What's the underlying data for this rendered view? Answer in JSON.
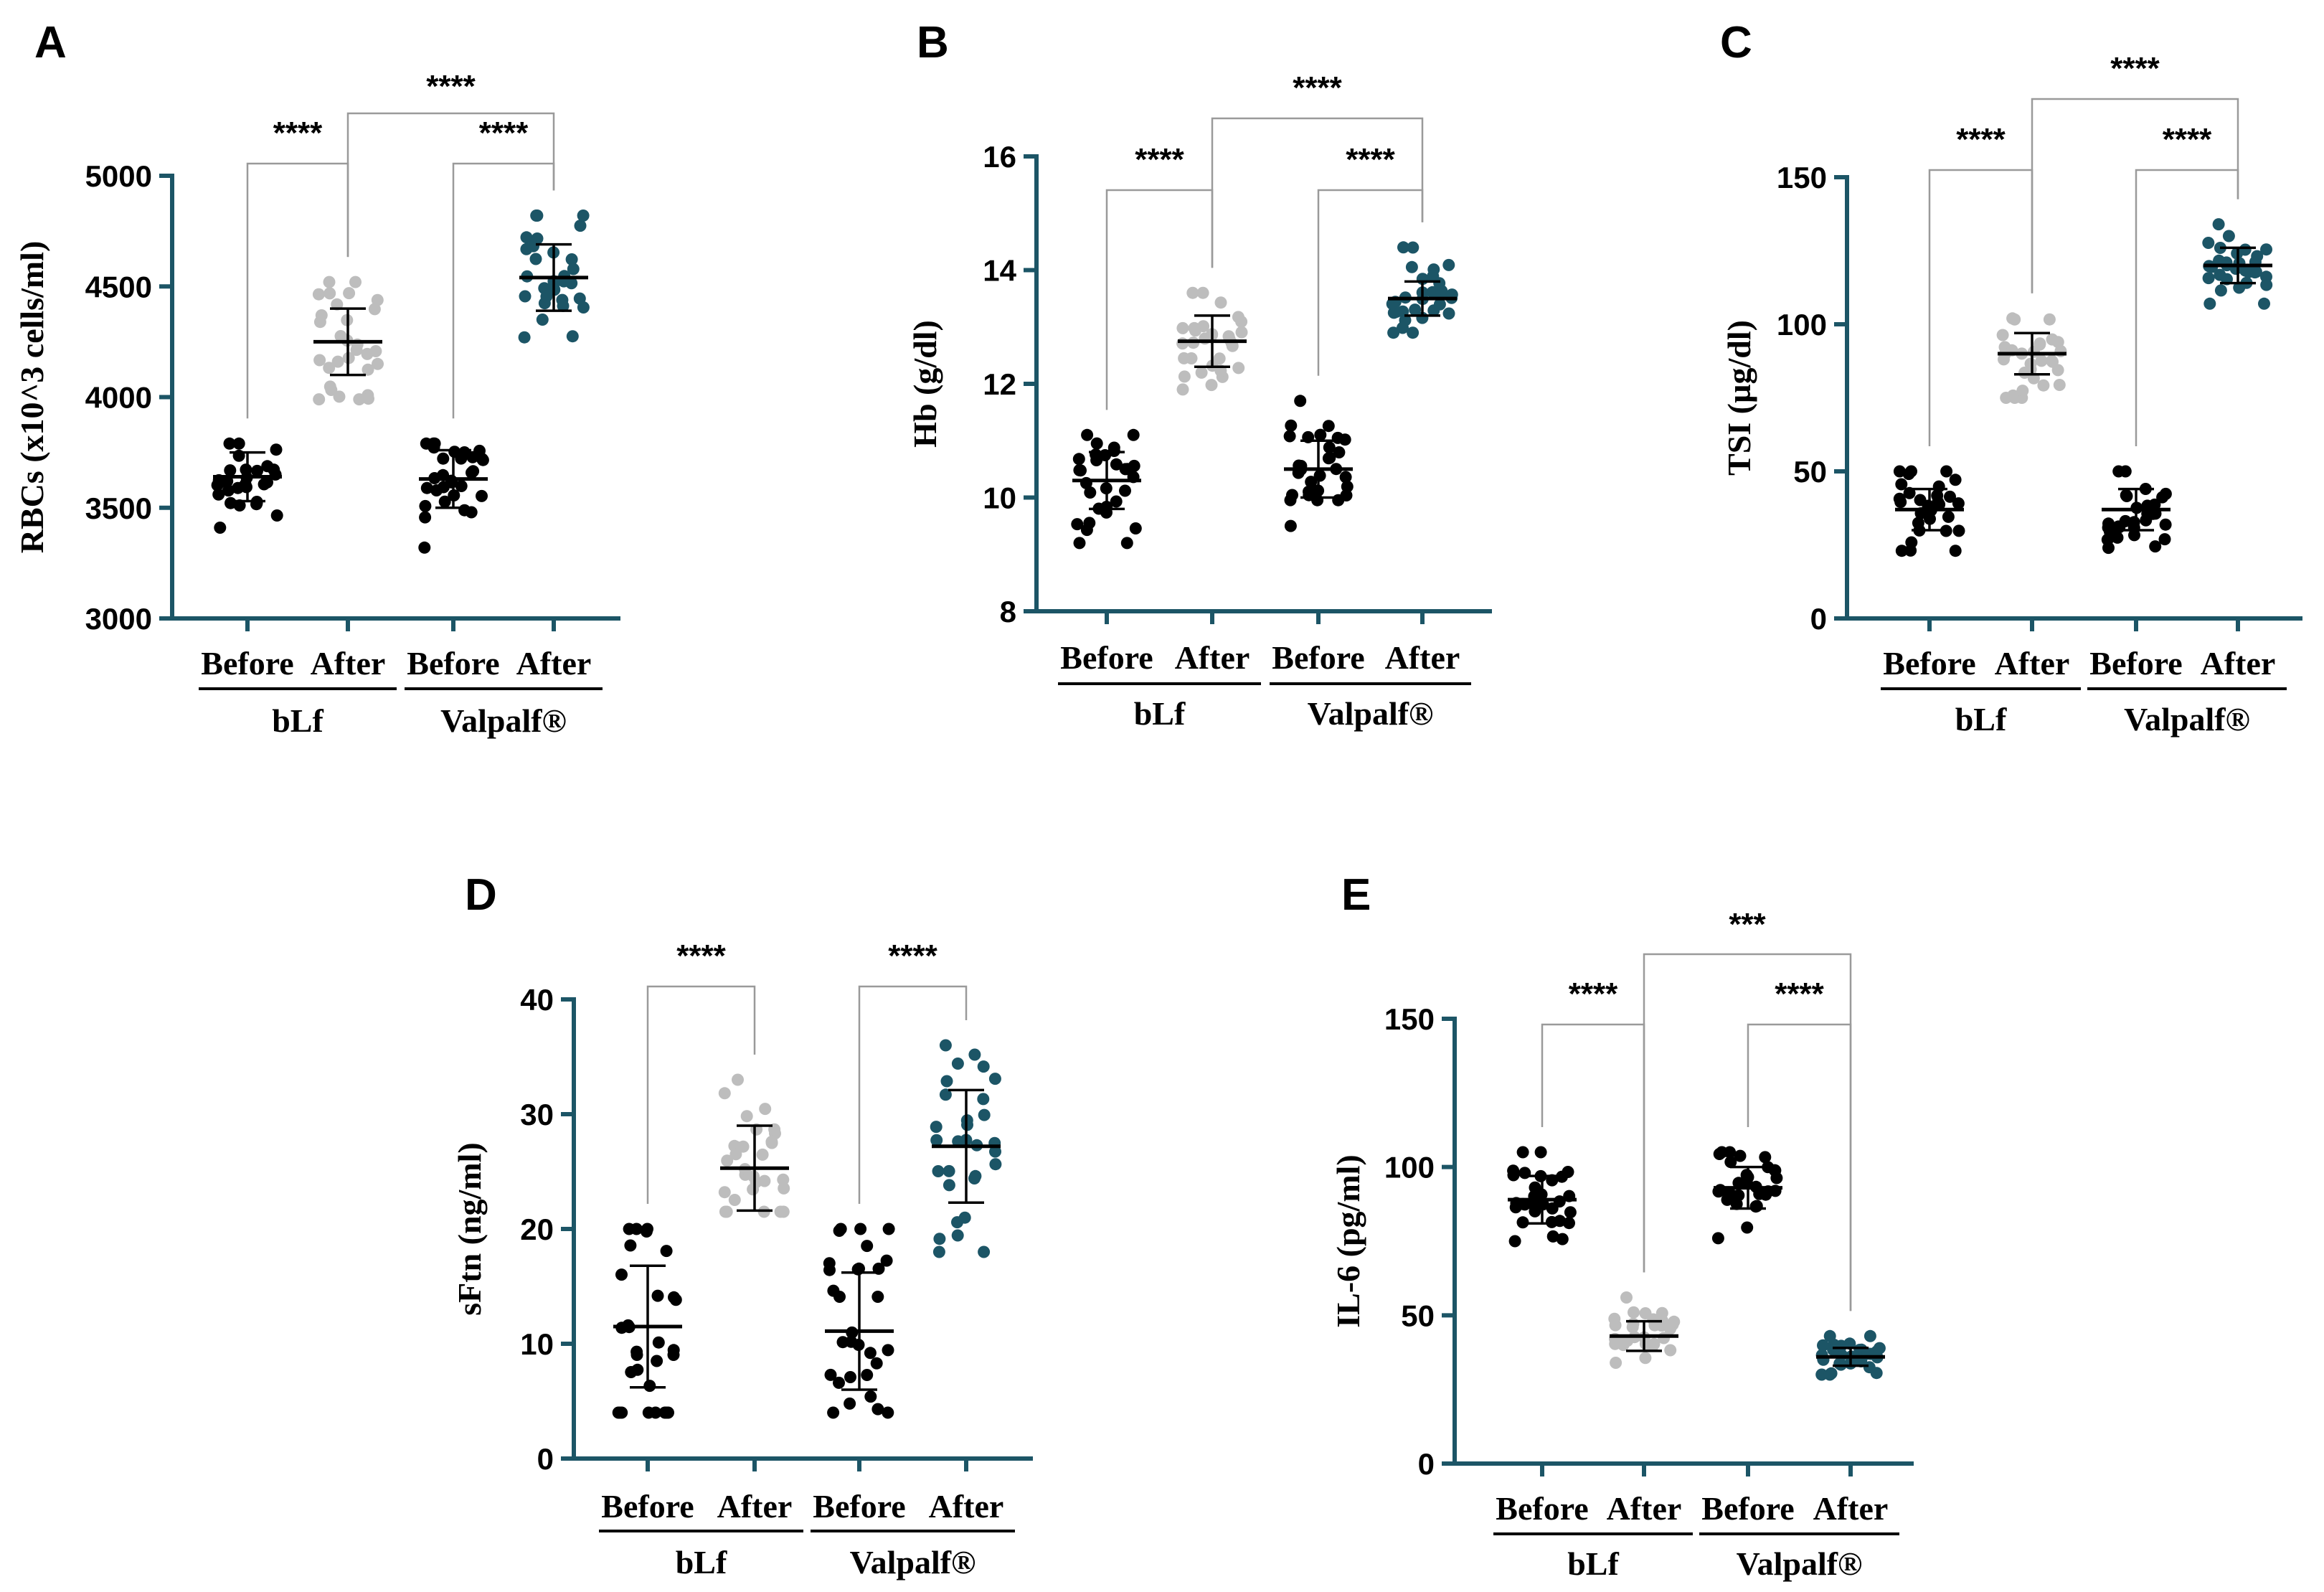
{
  "figure": {
    "categories": [
      "Before",
      "After",
      "Before",
      "After"
    ],
    "groups": [
      "bLf",
      "Valpalf®"
    ],
    "colors": {
      "before": "#000000",
      "after_blf": "#bdbdbd",
      "after_valpalf": "#1c5566"
    }
  },
  "chart_data": [
    {
      "panel": "A",
      "type": "scatter",
      "ylabel": "RBCs (x10^3 cells/ml)",
      "ylim": [
        3000,
        5000
      ],
      "yticks": [
        "3000",
        "3500",
        "4000",
        "4500",
        "5000"
      ],
      "categories": [
        "Before",
        "After",
        "Before",
        "After"
      ],
      "groups": [
        "bLf",
        "Valpalf®"
      ],
      "series": [
        {
          "name": "bLf Before",
          "mean": 3640,
          "sd": 110,
          "min": 3410,
          "max": 3790,
          "n": 30
        },
        {
          "name": "bLf After",
          "mean": 4250,
          "sd": 150,
          "min": 3990,
          "max": 4520,
          "n": 30
        },
        {
          "name": "Valpalf® Before",
          "mean": 3630,
          "sd": 130,
          "min": 3320,
          "max": 3790,
          "n": 30
        },
        {
          "name": "Valpalf® After",
          "mean": 4540,
          "sd": 150,
          "min": 4270,
          "max": 4820,
          "n": 30
        }
      ],
      "comparisons": [
        {
          "from": 0,
          "to": 1,
          "label": "****"
        },
        {
          "from": 2,
          "to": 3,
          "label": "****"
        },
        {
          "from": 1,
          "to": 3,
          "label": "****"
        }
      ]
    },
    {
      "panel": "B",
      "type": "scatter",
      "ylabel": "Hb (g/dl)",
      "ylim": [
        8,
        16
      ],
      "yticks": [
        "8",
        "10",
        "12",
        "14",
        "16"
      ],
      "categories": [
        "Before",
        "After",
        "Before",
        "After"
      ],
      "groups": [
        "bLf",
        "Valpalf®"
      ],
      "series": [
        {
          "name": "bLf Before",
          "mean": 10.3,
          "sd": 0.5,
          "min": 9.2,
          "max": 11.1,
          "n": 30
        },
        {
          "name": "bLf After",
          "mean": 12.75,
          "sd": 0.45,
          "min": 11.9,
          "max": 13.6,
          "n": 30
        },
        {
          "name": "Valpalf® Before",
          "mean": 10.5,
          "sd": 0.5,
          "min": 9.5,
          "max": 11.7,
          "n": 30
        },
        {
          "name": "Valpalf® After",
          "mean": 13.5,
          "sd": 0.3,
          "min": 12.9,
          "max": 14.4,
          "n": 30
        }
      ],
      "comparisons": [
        {
          "from": 0,
          "to": 1,
          "label": "****"
        },
        {
          "from": 2,
          "to": 3,
          "label": "****"
        },
        {
          "from": 1,
          "to": 3,
          "label": "****"
        }
      ]
    },
    {
      "panel": "C",
      "type": "scatter",
      "ylabel": "TSI (µg/dl)",
      "ylim": [
        0,
        150
      ],
      "yticks": [
        "0",
        "50",
        "100",
        "150"
      ],
      "categories": [
        "Before",
        "After",
        "Before",
        "After"
      ],
      "groups": [
        "bLf",
        "Valpalf®"
      ],
      "series": [
        {
          "name": "bLf Before",
          "mean": 37,
          "sd": 7,
          "min": 23,
          "max": 50,
          "n": 30
        },
        {
          "name": "bLf After",
          "mean": 90,
          "sd": 7,
          "min": 75,
          "max": 102,
          "n": 30
        },
        {
          "name": "Valpalf® Before",
          "mean": 37,
          "sd": 7,
          "min": 24,
          "max": 50,
          "n": 30
        },
        {
          "name": "Valpalf® After",
          "mean": 120,
          "sd": 6,
          "min": 107,
          "max": 134,
          "n": 30
        }
      ],
      "comparisons": [
        {
          "from": 0,
          "to": 1,
          "label": "****"
        },
        {
          "from": 2,
          "to": 3,
          "label": "****"
        },
        {
          "from": 1,
          "to": 3,
          "label": "****"
        }
      ]
    },
    {
      "panel": "D",
      "type": "scatter",
      "ylabel": "sFtn (ng/ml)",
      "ylim": [
        0,
        40
      ],
      "yticks": [
        "0",
        "10",
        "20",
        "30",
        "40"
      ],
      "categories": [
        "Before",
        "After",
        "Before",
        "After"
      ],
      "groups": [
        "bLf",
        "Valpalf®"
      ],
      "series": [
        {
          "name": "bLf Before",
          "mean": 11.5,
          "sd": 5.3,
          "min": 4,
          "max": 20,
          "n": 30
        },
        {
          "name": "bLf After",
          "mean": 25.3,
          "sd": 3.7,
          "min": 21.5,
          "max": 33,
          "n": 30
        },
        {
          "name": "Valpalf® Before",
          "mean": 11.1,
          "sd": 5.1,
          "min": 4,
          "max": 20,
          "n": 30
        },
        {
          "name": "Valpalf® After",
          "mean": 27.2,
          "sd": 4.9,
          "min": 18,
          "max": 36,
          "n": 30
        }
      ],
      "comparisons": [
        {
          "from": 0,
          "to": 1,
          "label": "****"
        },
        {
          "from": 2,
          "to": 3,
          "label": "****"
        }
      ]
    },
    {
      "panel": "E",
      "type": "scatter",
      "ylabel": "IL-6 (pg/ml)",
      "ylim": [
        0,
        150
      ],
      "yticks": [
        "0",
        "50",
        "100",
        "150"
      ],
      "categories": [
        "Before",
        "After",
        "Before",
        "After"
      ],
      "groups": [
        "bLf",
        "Valpalf®"
      ],
      "series": [
        {
          "name": "bLf Before",
          "mean": 89,
          "sd": 8,
          "min": 75,
          "max": 105,
          "n": 30
        },
        {
          "name": "bLf After",
          "mean": 43,
          "sd": 5,
          "min": 34,
          "max": 56,
          "n": 30
        },
        {
          "name": "Valpalf® Before",
          "mean": 93,
          "sd": 7,
          "min": 76,
          "max": 105,
          "n": 30
        },
        {
          "name": "Valpalf® After",
          "mean": 36,
          "sd": 3,
          "min": 30,
          "max": 43,
          "n": 30
        }
      ],
      "comparisons": [
        {
          "from": 0,
          "to": 1,
          "label": "****"
        },
        {
          "from": 2,
          "to": 3,
          "label": "****"
        },
        {
          "from": 1,
          "to": 3,
          "label": "***"
        }
      ]
    }
  ]
}
